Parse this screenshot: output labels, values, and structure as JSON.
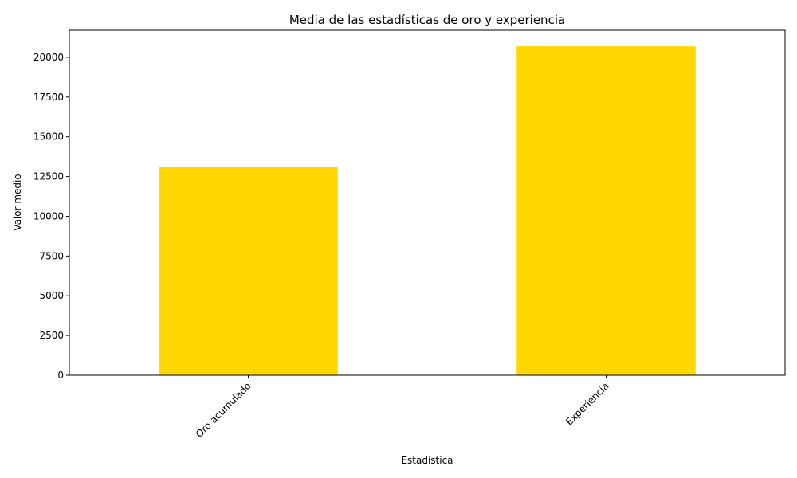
{
  "chart_data": {
    "type": "bar",
    "title": "Media de las estadísticas de oro y experiencia",
    "xlabel": "Estadística",
    "ylabel": "Valor medio",
    "categories": [
      "Oro acumulado",
      "Experiencia"
    ],
    "values": [
      13080,
      20690
    ],
    "ylim": [
      0,
      21700
    ],
    "yticks": [
      0,
      2500,
      5000,
      7500,
      10000,
      12500,
      15000,
      17500,
      20000
    ],
    "xtick_rotation": 45,
    "bar_color": "#FFD700",
    "grid": false,
    "legend": "none"
  }
}
